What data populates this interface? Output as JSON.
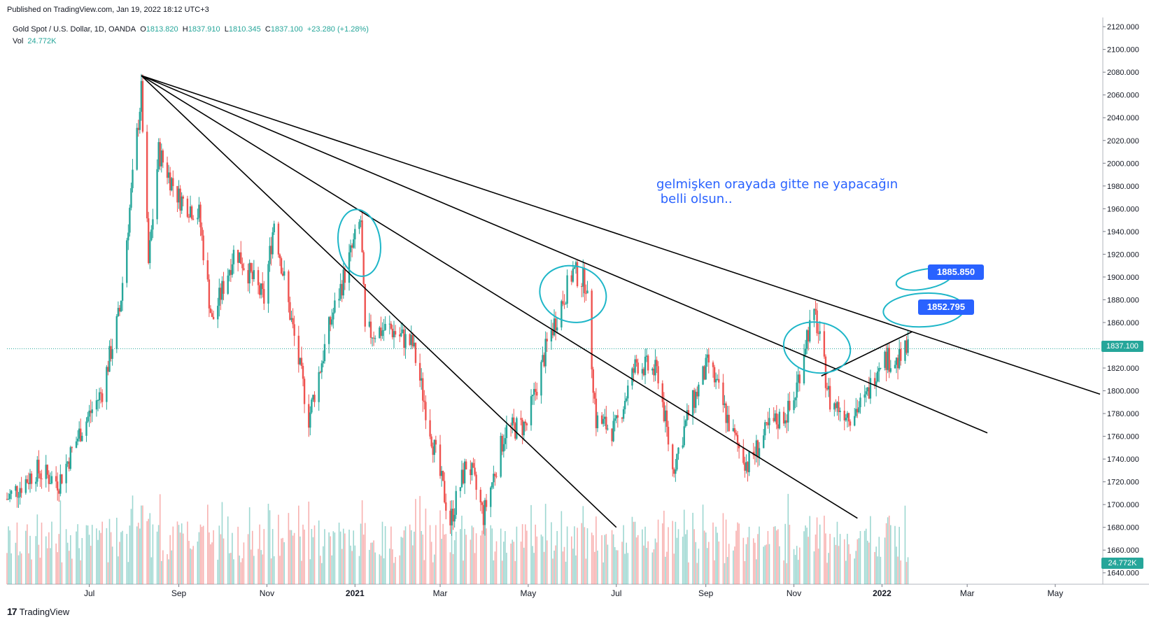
{
  "header": {
    "published": "Published on TradingView.com, Jan 19, 2022 18:12 UTC+3"
  },
  "legend": {
    "symbol": "Gold Spot / U.S. Dollar, 1D, OANDA",
    "o_label": "O",
    "o_value": "1813.820",
    "h_label": "H",
    "h_value": "1837.910",
    "l_label": "L",
    "l_value": "1810.345",
    "c_label": "C",
    "c_value": "1837.100",
    "change": "+23.280 (+1.28%)",
    "vol_label": "Vol",
    "vol_value": "24.772K"
  },
  "annotation": {
    "text": "gelmişken orayada gitte ne yapacağın\n belli olsun.."
  },
  "price_tags": {
    "tag1": "1885.850",
    "tag2": "1852.795",
    "last": "1837.100",
    "volume": "24.772K"
  },
  "footer": {
    "brand": "TradingView",
    "logo_glyph": "17"
  },
  "colors": {
    "up": "#26a69a",
    "down": "#ef5350",
    "annotation": "#2962ff",
    "highlight": "#1eb6c8",
    "trendline": "#000000",
    "tag_bg": "#2962ff"
  },
  "chart_data": {
    "type": "candlestick",
    "instrument": "Gold Spot / U.S. Dollar",
    "timeframe": "1D",
    "ylim": [
      1630,
      2125
    ],
    "y_ticks": [
      "2120.000",
      "2100.000",
      "2080.000",
      "2060.000",
      "2040.000",
      "2020.000",
      "2000.000",
      "1980.000",
      "1960.000",
      "1940.000",
      "1920.000",
      "1900.000",
      "1880.000",
      "1860.000",
      "1840.000",
      "1820.000",
      "1800.000",
      "1780.000",
      "1760.000",
      "1740.000",
      "1720.000",
      "1700.000",
      "1680.000",
      "1660.000",
      "1640.000"
    ],
    "x_ticks": [
      "Jul",
      "Sep",
      "Nov",
      "2021",
      "Mar",
      "May",
      "Jul",
      "Sep",
      "Nov",
      "2022",
      "Mar",
      "May"
    ],
    "x_tick_dates": [
      "2020-07-01",
      "2020-09-01",
      "2020-11-01",
      "2021-01-01",
      "2021-03-01",
      "2021-05-01",
      "2021-07-01",
      "2021-09-01",
      "2021-11-01",
      "2022-01-01",
      "2022-03-01",
      "2022-05-01"
    ],
    "x_range": [
      "2020-05-05",
      "2022-06-01"
    ],
    "price_points": [
      {
        "date": "2020-05-05",
        "close": 1705
      },
      {
        "date": "2020-05-25",
        "close": 1730
      },
      {
        "date": "2020-06-10",
        "close": 1720
      },
      {
        "date": "2020-06-25",
        "close": 1765
      },
      {
        "date": "2020-07-10",
        "close": 1800
      },
      {
        "date": "2020-07-22",
        "close": 1870
      },
      {
        "date": "2020-08-06",
        "close": 2063
      },
      {
        "date": "2020-08-11",
        "close": 1911
      },
      {
        "date": "2020-08-18",
        "close": 2010
      },
      {
        "date": "2020-09-01",
        "close": 1970
      },
      {
        "date": "2020-09-15",
        "close": 1955
      },
      {
        "date": "2020-09-24",
        "close": 1860
      },
      {
        "date": "2020-10-10",
        "close": 1925
      },
      {
        "date": "2020-10-30",
        "close": 1880
      },
      {
        "date": "2020-11-06",
        "close": 1950
      },
      {
        "date": "2020-11-16",
        "close": 1875
      },
      {
        "date": "2020-11-30",
        "close": 1776
      },
      {
        "date": "2020-12-15",
        "close": 1860
      },
      {
        "date": "2021-01-05",
        "close": 1950
      },
      {
        "date": "2021-01-08",
        "close": 1850
      },
      {
        "date": "2021-01-25",
        "close": 1855
      },
      {
        "date": "2021-02-10",
        "close": 1840
      },
      {
        "date": "2021-02-28",
        "close": 1730
      },
      {
        "date": "2021-03-08",
        "close": 1685
      },
      {
        "date": "2021-03-20",
        "close": 1740
      },
      {
        "date": "2021-03-31",
        "close": 1690
      },
      {
        "date": "2021-04-15",
        "close": 1765
      },
      {
        "date": "2021-04-30",
        "close": 1770
      },
      {
        "date": "2021-05-15",
        "close": 1845
      },
      {
        "date": "2021-06-01",
        "close": 1905
      },
      {
        "date": "2021-06-10",
        "close": 1895
      },
      {
        "date": "2021-06-17",
        "close": 1774
      },
      {
        "date": "2021-06-30",
        "close": 1765
      },
      {
        "date": "2021-07-15",
        "close": 1825
      },
      {
        "date": "2021-07-30",
        "close": 1815
      },
      {
        "date": "2021-08-09",
        "close": 1730
      },
      {
        "date": "2021-08-20",
        "close": 1780
      },
      {
        "date": "2021-09-03",
        "close": 1825
      },
      {
        "date": "2021-09-20",
        "close": 1760
      },
      {
        "date": "2021-09-30",
        "close": 1735
      },
      {
        "date": "2021-10-15",
        "close": 1768
      },
      {
        "date": "2021-10-31",
        "close": 1785
      },
      {
        "date": "2021-11-10",
        "close": 1850
      },
      {
        "date": "2021-11-16",
        "close": 1865
      },
      {
        "date": "2021-11-26",
        "close": 1790
      },
      {
        "date": "2021-12-10",
        "close": 1780
      },
      {
        "date": "2021-12-20",
        "close": 1790
      },
      {
        "date": "2021-12-31",
        "close": 1830
      },
      {
        "date": "2022-01-12",
        "close": 1825
      },
      {
        "date": "2022-01-19",
        "close": 1837
      }
    ]
  }
}
